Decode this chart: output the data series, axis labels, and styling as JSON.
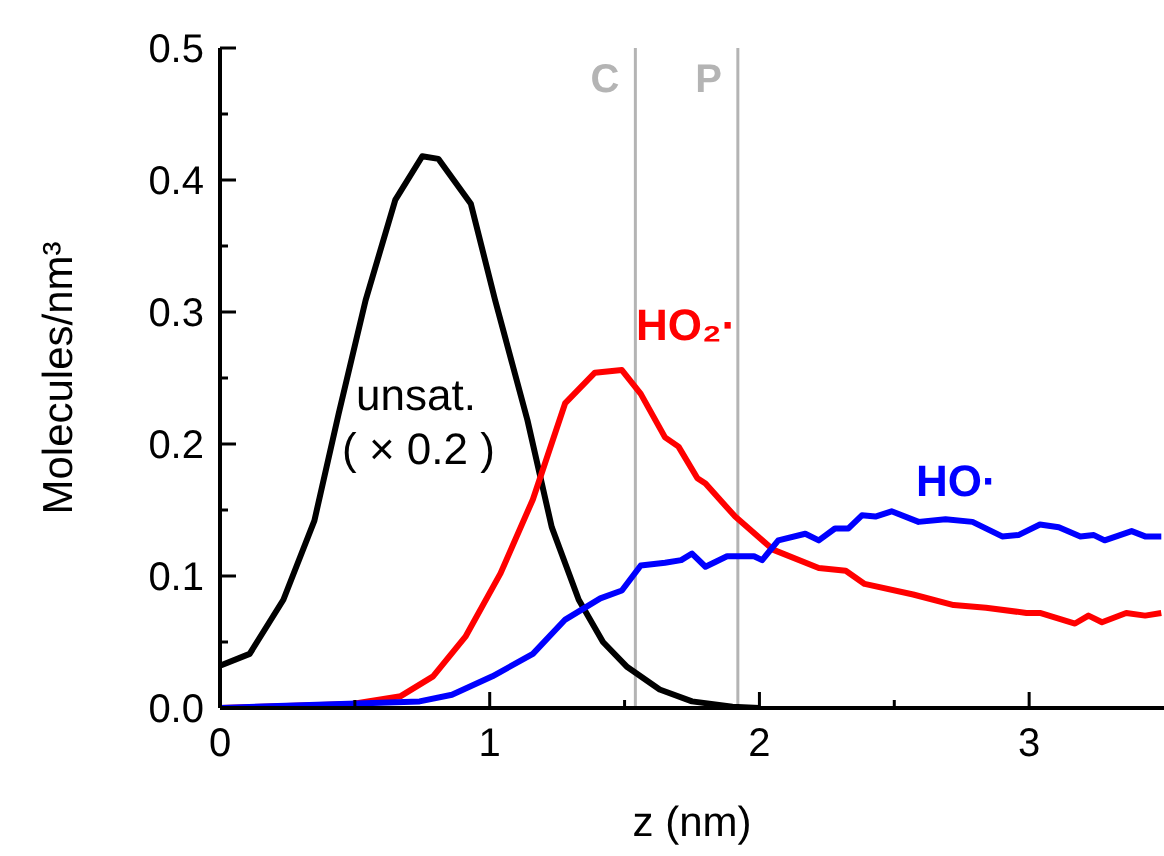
{
  "chart_data": {
    "type": "line",
    "xlabel": "z (nm)",
    "ylabel": "Molecules/nm³",
    "marker": "none",
    "line_style": "solid",
    "xlim": [
      0,
      3.5
    ],
    "ylim": [
      0,
      0.5
    ],
    "xticks": [
      0,
      {
        "value": 0.5,
        "label": null
      },
      1,
      {
        "value": 1.5,
        "label": null
      },
      2,
      {
        "value": 2.5,
        "label": null
      },
      3
    ],
    "yticks": [
      {
        "value": 0,
        "label": "0.0"
      },
      {
        "value": 0.05,
        "label": null
      },
      {
        "value": 0.1,
        "label": "0.1"
      },
      {
        "value": 0.15,
        "label": null
      },
      {
        "value": 0.2,
        "label": "0.2"
      },
      {
        "value": 0.25,
        "label": null
      },
      {
        "value": 0.3,
        "label": "0.3"
      },
      {
        "value": 0.35,
        "label": null
      },
      {
        "value": 0.4,
        "label": "0.4"
      },
      {
        "value": 0.45,
        "label": null
      },
      {
        "value": 0.5,
        "label": "0.5"
      }
    ],
    "ref_lines": [
      {
        "axis": "x",
        "value": 1.54,
        "label": "C",
        "color": "#b4b4b4"
      },
      {
        "axis": "x",
        "value": 1.92,
        "label": "P",
        "color": "#b4b4b4"
      }
    ],
    "annotations": [
      "( × 0.2 )"
    ],
    "series": [
      {
        "name": "unsat.",
        "color": "#000000",
        "x": [
          0,
          0.11,
          0.235,
          0.35,
          0.44,
          0.54,
          0.65,
          0.75,
          0.81,
          0.93,
          1.02,
          1.14,
          1.23,
          1.33,
          1.42,
          1.51,
          1.63,
          1.75,
          1.9,
          2.0
        ],
        "values": [
          0.032,
          0.041,
          0.082,
          0.142,
          0.223,
          0.309,
          0.385,
          0.418,
          0.416,
          0.382,
          0.309,
          0.218,
          0.137,
          0.082,
          0.05,
          0.031,
          0.014,
          0.005,
          0.001,
          0
        ]
      },
      {
        "name": "HO₂·",
        "color": "#ff0000",
        "x": [
          0,
          0.49,
          0.67,
          0.79,
          0.91,
          1.04,
          1.16,
          1.28,
          1.39,
          1.49,
          1.56,
          1.65,
          1.7,
          1.77,
          1.8,
          1.91,
          2.05,
          2.22,
          2.32,
          2.39,
          2.57,
          2.72,
          2.84,
          2.99,
          3.04,
          3.17,
          3.22,
          3.27,
          3.36,
          3.43,
          3.49
        ],
        "values": [
          0,
          0.003,
          0.009,
          0.024,
          0.054,
          0.102,
          0.158,
          0.231,
          0.254,
          0.256,
          0.238,
          0.205,
          0.198,
          0.174,
          0.17,
          0.145,
          0.12,
          0.106,
          0.104,
          0.094,
          0.086,
          0.078,
          0.076,
          0.072,
          0.072,
          0.064,
          0.07,
          0.065,
          0.072,
          0.07,
          0.072
        ]
      },
      {
        "name": "HO·",
        "color": "#0000ff",
        "x": [
          0,
          0.74,
          0.86,
          1.01,
          1.16,
          1.28,
          1.41,
          1.49,
          1.56,
          1.65,
          1.71,
          1.75,
          1.8,
          1.88,
          1.98,
          2.01,
          2.07,
          2.17,
          2.22,
          2.28,
          2.33,
          2.38,
          2.43,
          2.49,
          2.59,
          2.69,
          2.79,
          2.9,
          2.96,
          3.04,
          3.11,
          3.19,
          3.24,
          3.28,
          3.38,
          3.43,
          3.49
        ],
        "values": [
          0,
          0.005,
          0.01,
          0.024,
          0.041,
          0.067,
          0.083,
          0.089,
          0.108,
          0.11,
          0.112,
          0.117,
          0.107,
          0.115,
          0.115,
          0.112,
          0.127,
          0.132,
          0.127,
          0.136,
          0.136,
          0.146,
          0.145,
          0.149,
          0.141,
          0.143,
          0.141,
          0.13,
          0.131,
          0.139,
          0.137,
          0.13,
          0.131,
          0.127,
          0.134,
          0.13,
          0.13
        ]
      }
    ]
  }
}
